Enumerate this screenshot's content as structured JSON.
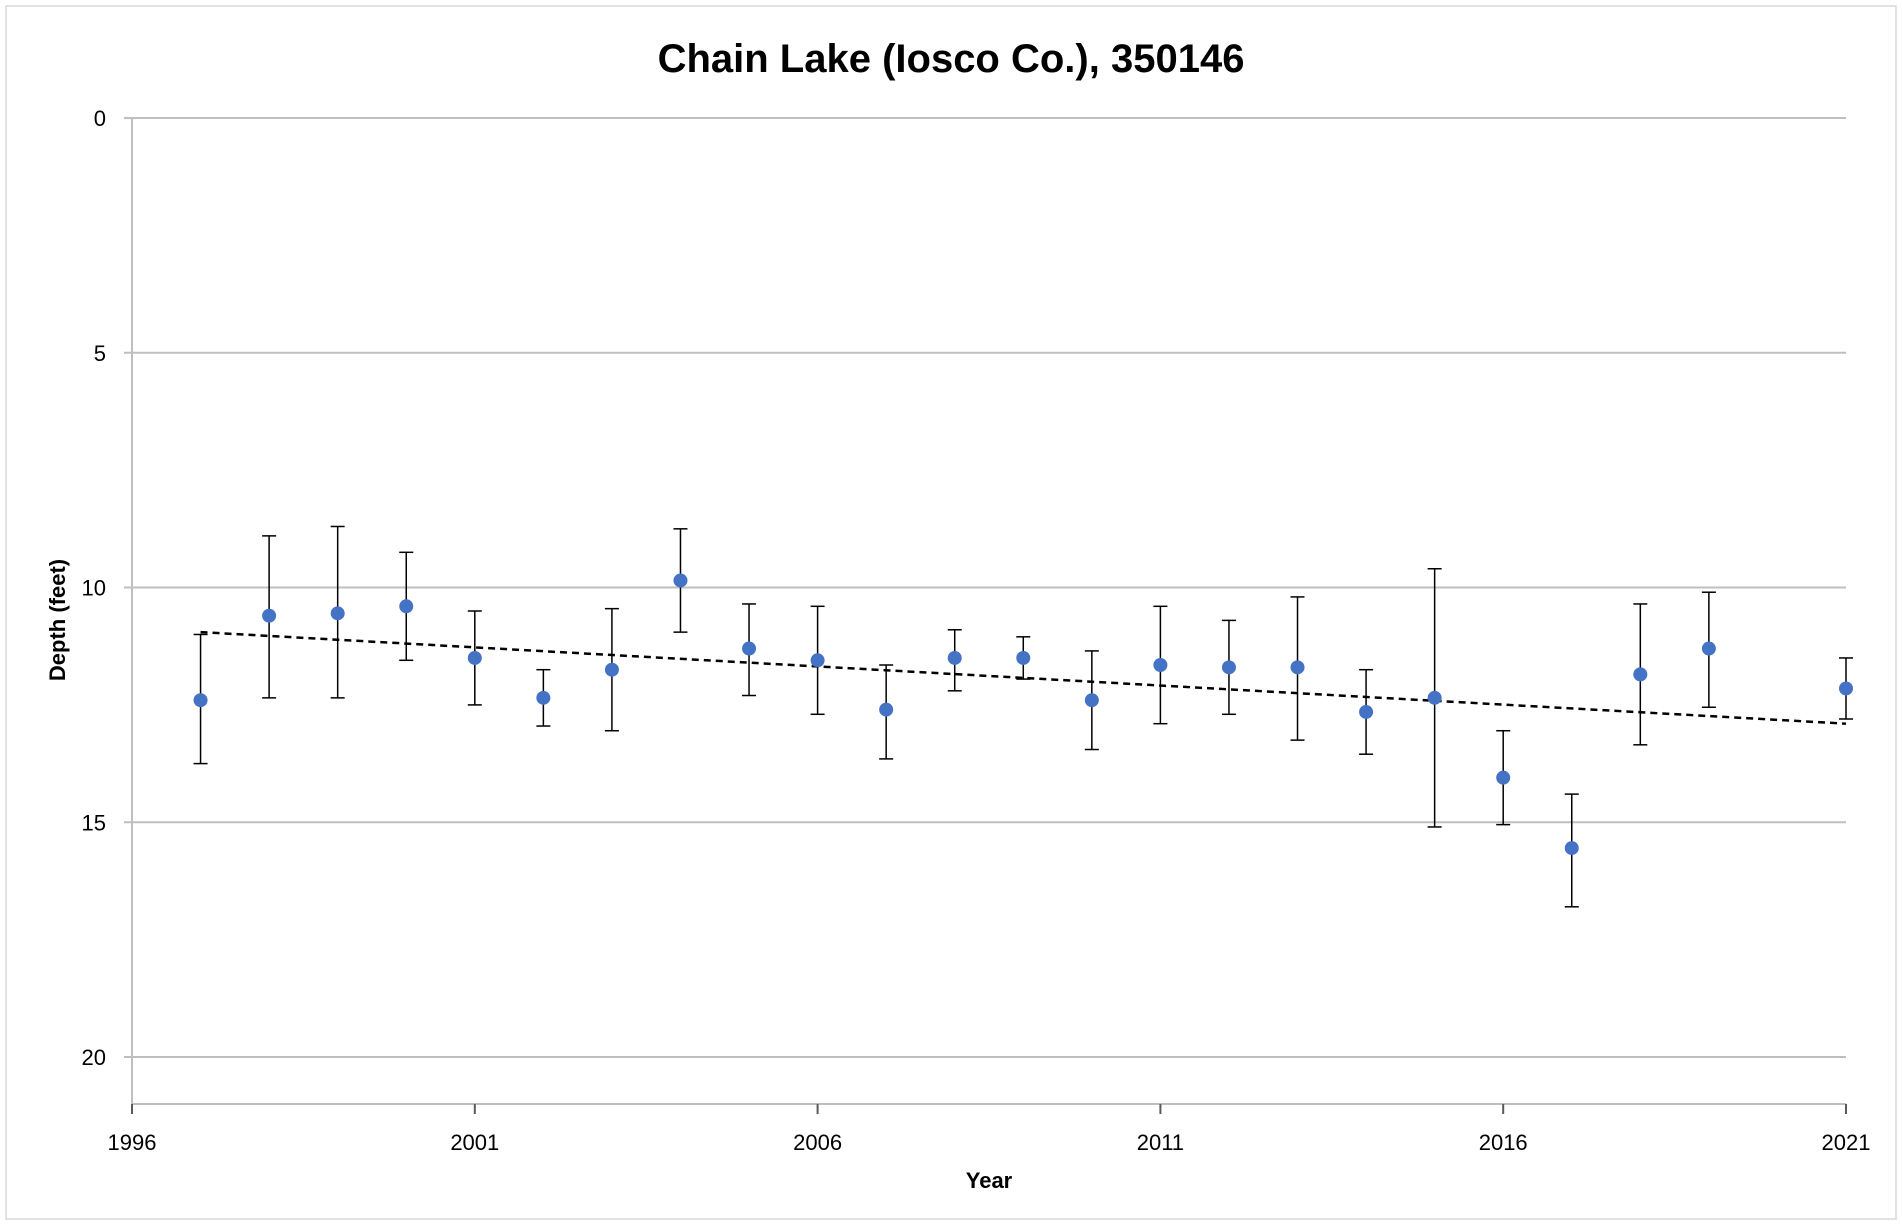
{
  "chart_data": {
    "type": "scatter",
    "title": "Chain Lake (Iosco Co.), 350146",
    "xlabel": "Year",
    "ylabel": "Depth (feet)",
    "xlim": [
      1996,
      2021
    ],
    "ylim": [
      0,
      21
    ],
    "y_inverted": true,
    "xticks": [
      1996,
      2001,
      2006,
      2011,
      2016,
      2021
    ],
    "yticks": [
      0,
      5,
      10,
      15,
      20
    ],
    "grid": "horizontal",
    "legend": "none",
    "colors": {
      "points": "#4472C4",
      "error_bars": "#000000",
      "trend": "#000000",
      "grid": "#BFBFBF"
    },
    "series": [
      {
        "type": "scatter",
        "x": [
          1997,
          1998,
          1999,
          2000,
          2001,
          2002,
          2003,
          2004,
          2005,
          2006,
          2007,
          2008,
          2009,
          2010,
          2011,
          2012,
          2013,
          2014,
          2015,
          2016,
          2017,
          2018,
          2019,
          2021
        ],
        "y": [
          12.4,
          10.6,
          10.55,
          10.4,
          11.5,
          12.35,
          11.75,
          9.85,
          11.3,
          11.55,
          12.6,
          11.5,
          11.5,
          12.4,
          11.65,
          11.7,
          11.7,
          12.65,
          12.35,
          14.05,
          15.55,
          11.85,
          11.3,
          12.15
        ],
        "error_low": [
          11.0,
          8.9,
          8.7,
          9.25,
          10.5,
          11.75,
          10.45,
          8.75,
          10.35,
          10.4,
          11.65,
          10.9,
          11.05,
          11.35,
          10.4,
          10.7,
          10.2,
          11.75,
          9.6,
          13.05,
          14.4,
          10.35,
          10.1,
          11.5
        ],
        "error_high": [
          13.75,
          12.35,
          12.35,
          11.55,
          12.5,
          12.95,
          13.05,
          10.95,
          12.3,
          12.7,
          13.65,
          12.2,
          11.95,
          13.45,
          12.9,
          12.7,
          13.25,
          13.55,
          15.1,
          15.05,
          16.8,
          13.35,
          12.55,
          12.8
        ]
      },
      {
        "type": "trend",
        "style": "dashed",
        "x": [
          1997,
          2021
        ],
        "y": [
          10.95,
          12.9
        ]
      }
    ]
  }
}
